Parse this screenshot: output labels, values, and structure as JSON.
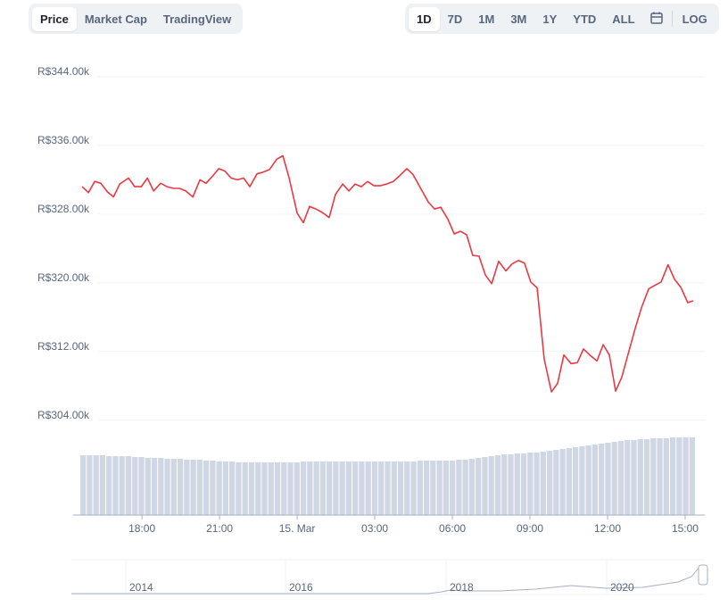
{
  "tabs": [
    "Price",
    "Market Cap",
    "TradingView"
  ],
  "ranges": [
    "1D",
    "7D",
    "1M",
    "3M",
    "1Y",
    "YTD",
    "ALL"
  ],
  "log_button": "LOG",
  "navigator": {
    "labels": [
      "2014",
      "2016",
      "2018",
      "2020"
    ]
  },
  "chart_data": {
    "type": "line",
    "x": [
      15.69,
      15.93,
      16.17,
      16.41,
      16.66,
      16.9,
      17.14,
      17.48,
      17.72,
      17.97,
      18.21,
      18.45,
      18.72,
      18.97,
      19.21,
      19.45,
      19.69,
      19.97,
      20.24,
      20.48,
      20.72,
      20.97,
      21.21,
      21.45,
      21.69,
      21.93,
      22.17,
      22.45,
      22.69,
      22.93,
      23.21,
      23.45,
      23.69,
      24.0,
      24.24,
      24.48,
      24.72,
      24.97,
      25.24,
      25.48,
      25.76,
      26.0,
      26.24,
      26.48,
      26.72,
      26.97,
      27.21,
      27.45,
      27.72,
      27.97,
      28.24,
      28.48,
      28.72,
      29.07,
      29.31,
      29.55,
      29.83,
      30.07,
      30.31,
      30.55,
      30.79,
      31.03,
      31.28,
      31.52,
      31.79,
      32.07,
      32.31,
      32.55,
      32.79,
      33.03,
      33.28,
      33.55,
      33.83,
      34.07,
      34.31,
      34.59,
      34.83,
      35.07,
      35.31,
      35.59,
      35.83,
      36.07,
      36.31,
      36.55,
      36.83,
      37.07,
      37.31,
      37.59,
      37.83,
      38.07,
      38.34,
      38.59,
      38.83,
      39.1,
      39.31
    ],
    "series": [
      {
        "color": "#ea3943",
        "values": [
          331200,
          330500,
          331800,
          331600,
          330600,
          330000,
          331500,
          332200,
          331200,
          331200,
          332200,
          330700,
          331600,
          331200,
          331000,
          331000,
          330700,
          330000,
          332000,
          331600,
          332400,
          333300,
          333000,
          332200,
          332000,
          332200,
          331200,
          332700,
          332900,
          333200,
          334400,
          334800,
          332200,
          328100,
          327000,
          328900,
          328600,
          328200,
          327600,
          330300,
          331500,
          330700,
          331500,
          331200,
          331800,
          331300,
          331300,
          331500,
          331800,
          332500,
          333300,
          332600,
          331300,
          329400,
          328600,
          328800,
          327400,
          325700,
          326000,
          325600,
          323200,
          323100,
          320900,
          319900,
          322500,
          321400,
          322200,
          322600,
          322300,
          320100,
          319400,
          311100,
          307300,
          308300,
          311600,
          310600,
          310700,
          312300,
          311600,
          310900,
          312800,
          311600,
          307400,
          309000,
          312100,
          314700,
          317100,
          319300,
          319700,
          320100,
          322100,
          320400,
          319500,
          317700,
          317900
        ]
      }
    ],
    "volume": {
      "color": "#cfd6e4",
      "ylim": [
        0,
        100
      ],
      "values": [
        67,
        67,
        67,
        67,
        66,
        66,
        66,
        66,
        65,
        65,
        64,
        64,
        64,
        63,
        63,
        63,
        62,
        62,
        62,
        61,
        61,
        60,
        60,
        60,
        59,
        59,
        59,
        59,
        59,
        59,
        59,
        59,
        59,
        59,
        60,
        60,
        60,
        60,
        60,
        60,
        60,
        60,
        60,
        60,
        60,
        60,
        60,
        60,
        60,
        60,
        60,
        60,
        61,
        61,
        61,
        61,
        61,
        61,
        62,
        62,
        63,
        64,
        65,
        66,
        67,
        68,
        68,
        69,
        69,
        70,
        70,
        71,
        72,
        73,
        74,
        75,
        76,
        77,
        78,
        79,
        80,
        81,
        82,
        83,
        84,
        84,
        85,
        85,
        86,
        86,
        86,
        87,
        87,
        87,
        87
      ]
    },
    "xlim": [
      15.34,
      39.76
    ],
    "ylim": [
      302000,
      346700
    ],
    "xticks": [
      {
        "value": 18,
        "label": "18:00"
      },
      {
        "value": 21,
        "label": "21:00"
      },
      {
        "value": 24,
        "label": "15. Mar"
      },
      {
        "value": 27,
        "label": "03:00"
      },
      {
        "value": 30,
        "label": "06:00"
      },
      {
        "value": 33,
        "label": "09:00"
      },
      {
        "value": 36,
        "label": "12:00"
      },
      {
        "value": 39,
        "label": "15:00"
      }
    ],
    "yticks": [
      {
        "value": 344000,
        "label": "R$344.00k"
      },
      {
        "value": 336000,
        "label": "R$336.00k"
      },
      {
        "value": 328000,
        "label": "R$328.00k"
      },
      {
        "value": 320000,
        "label": "R$320.00k"
      },
      {
        "value": 312000,
        "label": "R$312.00k"
      },
      {
        "value": 304000,
        "label": "R$304.00k"
      }
    ],
    "grid": true
  }
}
